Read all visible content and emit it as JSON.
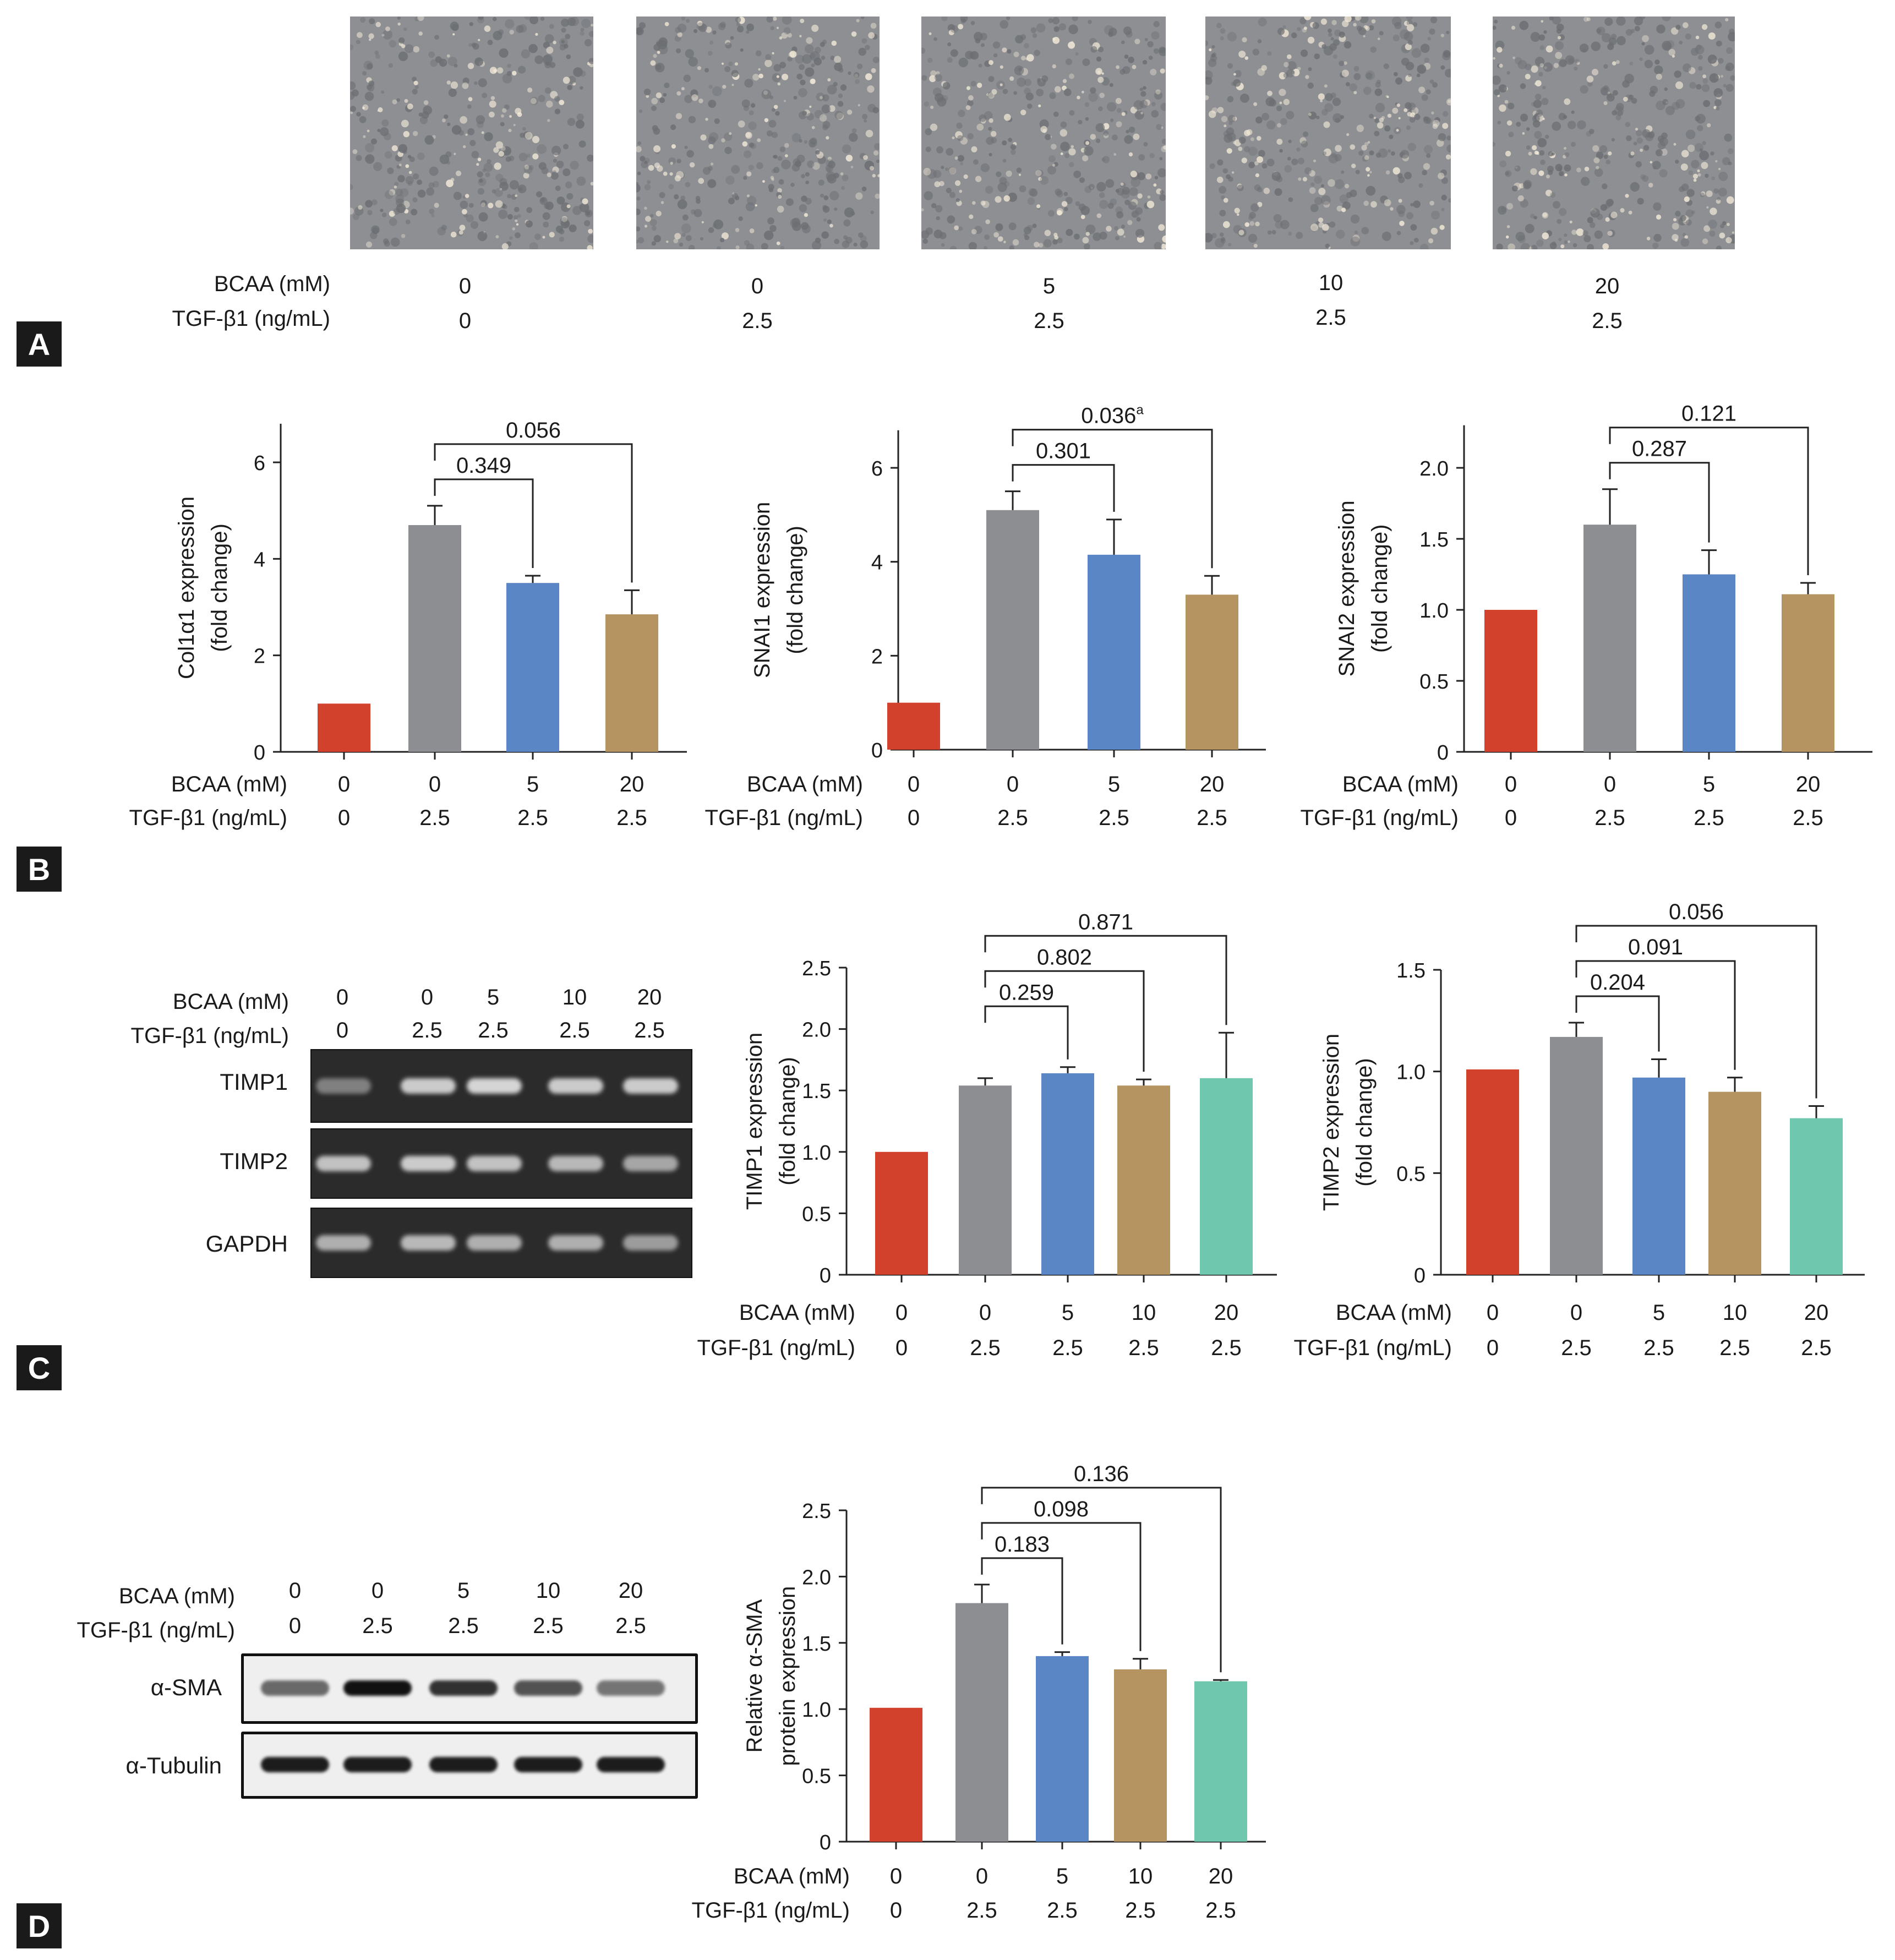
{
  "colors": {
    "control": "#d2412b",
    "tgf": "#8d8e91",
    "bcaa5": "#5b86c5",
    "bcaa10": "#b59462",
    "bcaa20": "#6fc8ae"
  },
  "row_labels": {
    "bcaa": "BCAA (mM)",
    "tgf": "TGF-β1 (ng/mL)"
  },
  "panel_a": {
    "label": "A",
    "image_desc": "phase-contrast-microscopy",
    "bcaa": [
      "0",
      "0",
      "5",
      "10",
      "20"
    ],
    "tgf": [
      "0",
      "2.5",
      "2.5",
      "2.5",
      "2.5"
    ]
  },
  "panel_b": {
    "label": "B"
  },
  "panel_c": {
    "label": "C",
    "gel": {
      "bcaa": [
        "0",
        "0",
        "5",
        "10",
        "20"
      ],
      "tgf": [
        "0",
        "2.5",
        "2.5",
        "2.5",
        "2.5"
      ],
      "bands": [
        "TIMP1",
        "TIMP2",
        "GAPDH"
      ]
    }
  },
  "panel_d": {
    "label": "D",
    "blot": {
      "bcaa": [
        "0",
        "0",
        "5",
        "10",
        "20"
      ],
      "tgf": [
        "0",
        "2.5",
        "2.5",
        "2.5",
        "2.5"
      ],
      "bands": [
        "α-SMA",
        "α-Tubulin"
      ]
    }
  },
  "chart_data": [
    {
      "id": "col1a1",
      "type": "bar",
      "ylabel": [
        "Col1α1 expression",
        "(fold change)"
      ],
      "ylim": [
        0,
        6.8
      ],
      "ticks": [
        0,
        2,
        4,
        6
      ],
      "tick_labels": [
        "0",
        "2",
        "4",
        "6"
      ],
      "bcaa": [
        "0",
        "0",
        "5",
        "20"
      ],
      "tgf": [
        "0",
        "2.5",
        "2.5",
        "2.5"
      ],
      "values": [
        1.0,
        4.7,
        3.5,
        2.85
      ],
      "errors": [
        0,
        0.4,
        0.15,
        0.5
      ],
      "color_keys": [
        "control",
        "tgf",
        "bcaa5",
        "bcaa10"
      ],
      "comparisons": [
        {
          "from": 1,
          "to": 2,
          "label": "0.349"
        },
        {
          "from": 1,
          "to": 3,
          "label": "0.056"
        }
      ]
    },
    {
      "id": "snai1",
      "type": "bar",
      "ylabel": [
        "SNAI1 expression",
        "(fold change)"
      ],
      "ylim": [
        0,
        6.8
      ],
      "ticks": [
        0,
        2,
        4,
        6
      ],
      "tick_labels": [
        "0",
        "2",
        "4",
        "6"
      ],
      "bcaa": [
        "0",
        "0",
        "5",
        "20"
      ],
      "tgf": [
        "0",
        "2.5",
        "2.5",
        "2.5"
      ],
      "values": [
        1.0,
        5.1,
        4.15,
        3.3
      ],
      "errors": [
        0,
        0.4,
        0.75,
        0.4
      ],
      "color_keys": [
        "control",
        "tgf",
        "bcaa5",
        "bcaa10"
      ],
      "comparisons": [
        {
          "from": 1,
          "to": 2,
          "label": "0.301"
        },
        {
          "from": 1,
          "to": 3,
          "label": "0.036",
          "sup": "a"
        }
      ]
    },
    {
      "id": "snai2",
      "type": "bar",
      "ylabel": [
        "SNAI2 expression",
        "(fold change)"
      ],
      "ylim": [
        0,
        2.3
      ],
      "ticks": [
        0,
        0.5,
        1.0,
        1.5,
        2.0
      ],
      "tick_labels": [
        "0",
        "0.5",
        "1.0",
        "1.5",
        "2.0"
      ],
      "bcaa": [
        "0",
        "0",
        "5",
        "20"
      ],
      "tgf": [
        "0",
        "2.5",
        "2.5",
        "2.5"
      ],
      "values": [
        1.0,
        1.6,
        1.25,
        1.11
      ],
      "errors": [
        0,
        0.25,
        0.17,
        0.08
      ],
      "color_keys": [
        "control",
        "tgf",
        "bcaa5",
        "bcaa10"
      ],
      "comparisons": [
        {
          "from": 1,
          "to": 2,
          "label": "0.287"
        },
        {
          "from": 1,
          "to": 3,
          "label": "0.121"
        }
      ]
    },
    {
      "id": "timp1",
      "type": "bar",
      "ylabel": [
        "TIMP1 expression",
        "(fold change)"
      ],
      "ylim": [
        0,
        2.5
      ],
      "ticks": [
        0,
        0.5,
        1.0,
        1.5,
        2.0,
        2.5
      ],
      "tick_labels": [
        "0",
        "0.5",
        "1.0",
        "1.5",
        "2.0",
        "2.5"
      ],
      "bcaa": [
        "0",
        "0",
        "5",
        "10",
        "20"
      ],
      "tgf": [
        "0",
        "2.5",
        "2.5",
        "2.5",
        "2.5"
      ],
      "values": [
        1.0,
        1.54,
        1.64,
        1.54,
        1.6
      ],
      "errors": [
        0,
        0.06,
        0.05,
        0.05,
        0.37
      ],
      "color_keys": [
        "control",
        "tgf",
        "bcaa5",
        "bcaa10",
        "bcaa20"
      ],
      "comparisons": [
        {
          "from": 1,
          "to": 2,
          "label": "0.259"
        },
        {
          "from": 1,
          "to": 3,
          "label": "0.802"
        },
        {
          "from": 1,
          "to": 4,
          "label": "0.871"
        }
      ]
    },
    {
      "id": "timp2",
      "type": "bar",
      "ylabel": [
        "TIMP2 expression",
        "(fold change)"
      ],
      "ylim": [
        0,
        1.5
      ],
      "ticks": [
        0,
        0.5,
        1.0,
        1.5
      ],
      "tick_labels": [
        "0",
        "0.5",
        "1.0",
        "1.5"
      ],
      "bcaa": [
        "0",
        "0",
        "5",
        "10",
        "20"
      ],
      "tgf": [
        "0",
        "2.5",
        "2.5",
        "2.5",
        "2.5"
      ],
      "values": [
        1.01,
        1.17,
        0.97,
        0.9,
        0.77
      ],
      "errors": [
        0,
        0.07,
        0.09,
        0.07,
        0.06
      ],
      "color_keys": [
        "control",
        "tgf",
        "bcaa5",
        "bcaa10",
        "bcaa20"
      ],
      "comparisons": [
        {
          "from": 1,
          "to": 2,
          "label": "0.204"
        },
        {
          "from": 1,
          "to": 3,
          "label": "0.091"
        },
        {
          "from": 1,
          "to": 4,
          "label": "0.056"
        }
      ]
    },
    {
      "id": "asma",
      "type": "bar",
      "ylabel": [
        "Relative α-SMA",
        "protein expression"
      ],
      "ylim": [
        0,
        2.5
      ],
      "ticks": [
        0,
        0.5,
        1.0,
        1.5,
        2.0,
        2.5
      ],
      "tick_labels": [
        "0",
        "0.5",
        "1.0",
        "1.5",
        "2.0",
        "2.5"
      ],
      "bcaa": [
        "0",
        "0",
        "5",
        "10",
        "20"
      ],
      "tgf": [
        "0",
        "2.5",
        "2.5",
        "2.5",
        "2.5"
      ],
      "values": [
        1.01,
        1.8,
        1.4,
        1.3,
        1.21
      ],
      "errors": [
        0,
        0.14,
        0.03,
        0.08,
        0.01
      ],
      "color_keys": [
        "control",
        "tgf",
        "bcaa5",
        "bcaa10",
        "bcaa20"
      ],
      "comparisons": [
        {
          "from": 1,
          "to": 2,
          "label": "0.183"
        },
        {
          "from": 1,
          "to": 3,
          "label": "0.098"
        },
        {
          "from": 1,
          "to": 4,
          "label": "0.136"
        }
      ]
    }
  ]
}
